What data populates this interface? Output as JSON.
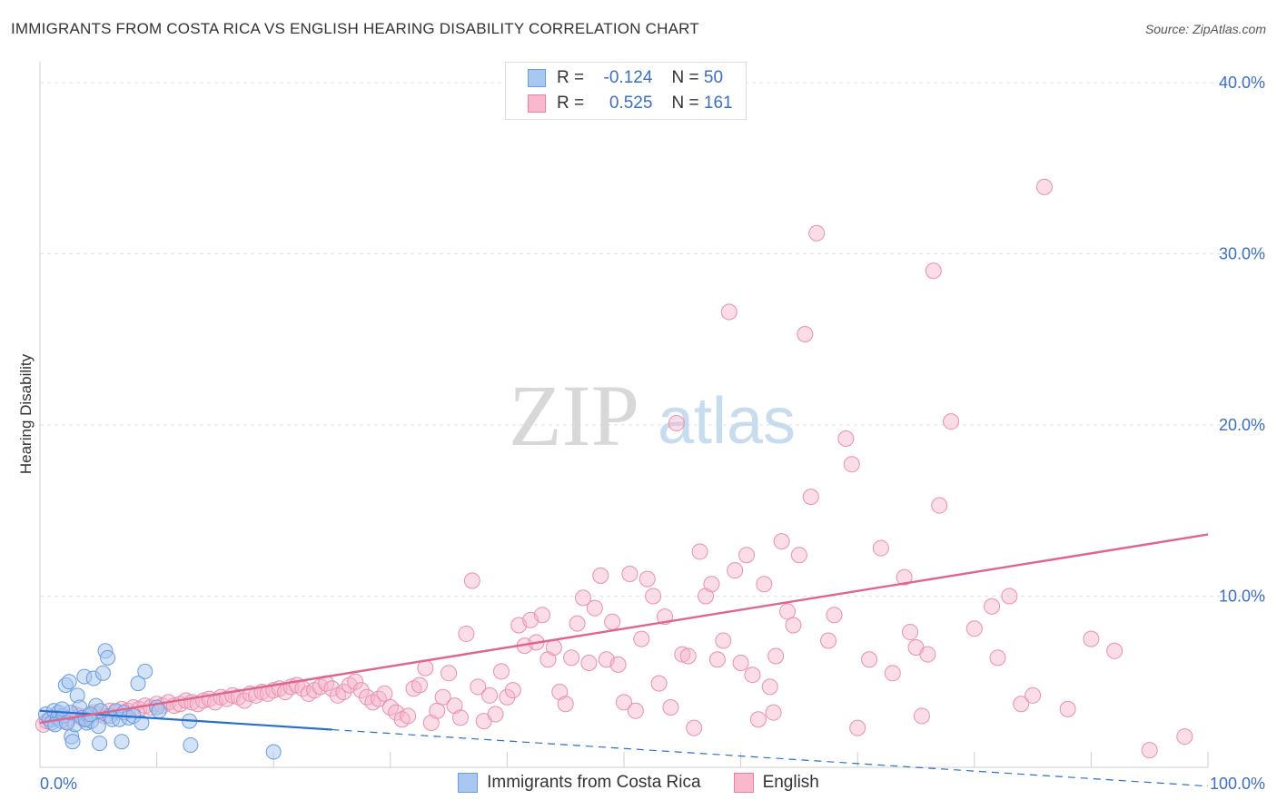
{
  "title": "IMMIGRANTS FROM COSTA RICA VS ENGLISH HEARING DISABILITY CORRELATION CHART",
  "source": "Source: ZipAtlas.com",
  "watermark": {
    "zip": "ZIP",
    "atlas": "atlas"
  },
  "legend_top": [
    {
      "r_label": "R =",
      "r_value": "-0.124",
      "n_label": "N =",
      "n_value": "50",
      "color": "#a8c8f0",
      "border": "#6b9be0"
    },
    {
      "r_label": "R =",
      "r_value": "0.525",
      "n_label": "N =",
      "n_value": "161",
      "color": "#f9b8cc",
      "border": "#ea80a0"
    }
  ],
  "colors": {
    "blue_fill": "#a8c8f0",
    "blue_stroke": "#6b9be0",
    "blue_line": "#2a6fd0",
    "pink_fill": "#f7b4c9",
    "pink_stroke": "#e890ad",
    "pink_line": "#e0648e",
    "tick_label": "#3a6fc4"
  },
  "chart_data": {
    "type": "scatter",
    "ylabel": "Hearing Disability",
    "xlim": [
      0,
      100
    ],
    "ylim": [
      0,
      41
    ],
    "x_tick_labels": [
      "0.0%",
      "100.0%"
    ],
    "y_ticks": [
      10,
      20,
      30,
      40
    ],
    "y_tick_labels": [
      "10.0%",
      "20.0%",
      "30.0%",
      "40.0%"
    ],
    "grid": true,
    "series": [
      {
        "name": "Immigrants from Costa Rica",
        "points": [
          [
            0.5,
            3.1
          ],
          [
            0.8,
            2.8
          ],
          [
            1.0,
            2.6
          ],
          [
            1.2,
            3.3
          ],
          [
            1.5,
            2.9
          ],
          [
            1.6,
            3.2
          ],
          [
            1.8,
            2.7
          ],
          [
            2.0,
            3.0
          ],
          [
            2.2,
            4.8
          ],
          [
            2.5,
            5.0
          ],
          [
            2.7,
            1.8
          ],
          [
            2.8,
            1.5
          ],
          [
            3.0,
            2.5
          ],
          [
            3.2,
            4.2
          ],
          [
            3.4,
            3.5
          ],
          [
            3.6,
            2.9
          ],
          [
            3.8,
            5.3
          ],
          [
            4.0,
            2.6
          ],
          [
            4.2,
            3.0
          ],
          [
            4.4,
            2.7
          ],
          [
            4.6,
            5.2
          ],
          [
            4.8,
            3.6
          ],
          [
            5.0,
            2.4
          ],
          [
            5.2,
            3.3
          ],
          [
            5.4,
            5.5
          ],
          [
            5.6,
            6.8
          ],
          [
            5.8,
            6.4
          ],
          [
            6.0,
            3.0
          ],
          [
            6.2,
            2.8
          ],
          [
            6.5,
            3.3
          ],
          [
            6.8,
            2.8
          ],
          [
            7.2,
            3.2
          ],
          [
            7.6,
            2.9
          ],
          [
            8.0,
            3.0
          ],
          [
            8.4,
            4.9
          ],
          [
            8.7,
            2.6
          ],
          [
            9.0,
            5.6
          ],
          [
            10.0,
            3.5
          ],
          [
            10.2,
            3.3
          ],
          [
            12.8,
            2.7
          ],
          [
            12.9,
            1.3
          ],
          [
            20.0,
            0.9
          ],
          [
            1.3,
            2.5
          ],
          [
            2.3,
            2.6
          ],
          [
            2.6,
            3.2
          ],
          [
            3.9,
            2.8
          ],
          [
            4.3,
            3.1
          ],
          [
            1.9,
            3.4
          ],
          [
            5.1,
            1.4
          ],
          [
            7.0,
            1.5
          ]
        ]
      },
      {
        "name": "English",
        "points": [
          [
            0.3,
            2.5
          ],
          [
            0.6,
            2.7
          ],
          [
            1.0,
            2.8
          ],
          [
            1.4,
            2.9
          ],
          [
            1.8,
            3.0
          ],
          [
            2.2,
            2.7
          ],
          [
            2.6,
            2.9
          ],
          [
            3.0,
            3.1
          ],
          [
            3.4,
            3.0
          ],
          [
            3.8,
            2.8
          ],
          [
            4.2,
            3.0
          ],
          [
            4.6,
            3.2
          ],
          [
            5.0,
            3.1
          ],
          [
            5.5,
            3.0
          ],
          [
            6.0,
            3.3
          ],
          [
            6.5,
            3.2
          ],
          [
            7.0,
            3.4
          ],
          [
            7.5,
            3.3
          ],
          [
            8.0,
            3.5
          ],
          [
            8.5,
            3.4
          ],
          [
            9.0,
            3.6
          ],
          [
            9.5,
            3.5
          ],
          [
            10.0,
            3.7
          ],
          [
            10.5,
            3.6
          ],
          [
            11.0,
            3.8
          ],
          [
            11.5,
            3.6
          ],
          [
            12.0,
            3.7
          ],
          [
            12.5,
            3.9
          ],
          [
            13.0,
            3.8
          ],
          [
            13.5,
            3.7
          ],
          [
            14.0,
            3.9
          ],
          [
            14.5,
            4.0
          ],
          [
            15.0,
            3.8
          ],
          [
            15.5,
            4.1
          ],
          [
            16.0,
            4.0
          ],
          [
            16.5,
            4.2
          ],
          [
            17.0,
            4.1
          ],
          [
            17.5,
            3.9
          ],
          [
            18.0,
            4.3
          ],
          [
            18.5,
            4.2
          ],
          [
            19.0,
            4.4
          ],
          [
            19.5,
            4.3
          ],
          [
            20.0,
            4.5
          ],
          [
            20.5,
            4.6
          ],
          [
            21.0,
            4.4
          ],
          [
            21.5,
            4.7
          ],
          [
            22.0,
            4.8
          ],
          [
            22.5,
            4.6
          ],
          [
            23.0,
            4.3
          ],
          [
            23.5,
            4.5
          ],
          [
            24.0,
            4.7
          ],
          [
            24.5,
            4.9
          ],
          [
            25.0,
            4.6
          ],
          [
            25.5,
            4.2
          ],
          [
            26.0,
            4.4
          ],
          [
            26.5,
            4.8
          ],
          [
            27.0,
            5.0
          ],
          [
            27.5,
            4.5
          ],
          [
            28.0,
            4.1
          ],
          [
            28.5,
            3.8
          ],
          [
            29.0,
            4.0
          ],
          [
            29.5,
            4.3
          ],
          [
            30.0,
            3.5
          ],
          [
            30.5,
            3.2
          ],
          [
            31.0,
            2.8
          ],
          [
            31.5,
            3.0
          ],
          [
            32.0,
            4.6
          ],
          [
            32.5,
            4.8
          ],
          [
            33.0,
            5.8
          ],
          [
            33.5,
            2.6
          ],
          [
            34.0,
            3.3
          ],
          [
            34.5,
            4.1
          ],
          [
            35.0,
            5.5
          ],
          [
            35.5,
            3.6
          ],
          [
            36.0,
            2.9
          ],
          [
            36.5,
            7.8
          ],
          [
            37.0,
            10.9
          ],
          [
            37.5,
            4.7
          ],
          [
            38.0,
            2.7
          ],
          [
            38.5,
            4.2
          ],
          [
            39.0,
            3.1
          ],
          [
            39.5,
            5.6
          ],
          [
            40.0,
            4.1
          ],
          [
            40.5,
            4.5
          ],
          [
            41.0,
            8.3
          ],
          [
            41.5,
            7.1
          ],
          [
            42.0,
            8.6
          ],
          [
            42.5,
            7.3
          ],
          [
            43.0,
            8.9
          ],
          [
            43.5,
            6.3
          ],
          [
            44.0,
            7.0
          ],
          [
            44.5,
            4.4
          ],
          [
            45.0,
            3.7
          ],
          [
            45.5,
            6.4
          ],
          [
            46.0,
            8.4
          ],
          [
            46.5,
            9.9
          ],
          [
            47.0,
            6.1
          ],
          [
            47.5,
            9.3
          ],
          [
            48.0,
            11.2
          ],
          [
            48.5,
            6.3
          ],
          [
            49.0,
            8.5
          ],
          [
            49.5,
            6.0
          ],
          [
            50.0,
            3.8
          ],
          [
            50.5,
            11.3
          ],
          [
            51.0,
            3.3
          ],
          [
            51.5,
            7.5
          ],
          [
            52.0,
            11.0
          ],
          [
            52.5,
            10.0
          ],
          [
            53.0,
            4.9
          ],
          [
            53.5,
            8.8
          ],
          [
            54.0,
            3.5
          ],
          [
            54.5,
            20.1
          ],
          [
            55.0,
            6.6
          ],
          [
            55.5,
            6.5
          ],
          [
            56.0,
            2.3
          ],
          [
            56.5,
            12.6
          ],
          [
            57.0,
            10.0
          ],
          [
            57.5,
            10.7
          ],
          [
            58.0,
            6.3
          ],
          [
            58.5,
            7.4
          ],
          [
            59.0,
            26.6
          ],
          [
            59.5,
            11.5
          ],
          [
            60.0,
            6.1
          ],
          [
            60.5,
            12.4
          ],
          [
            61.0,
            5.4
          ],
          [
            61.5,
            2.8
          ],
          [
            62.0,
            10.7
          ],
          [
            62.5,
            4.7
          ],
          [
            63.0,
            6.5
          ],
          [
            63.5,
            13.2
          ],
          [
            64.0,
            9.1
          ],
          [
            64.5,
            8.3
          ],
          [
            65.0,
            12.4
          ],
          [
            65.5,
            25.3
          ],
          [
            66.0,
            15.8
          ],
          [
            66.5,
            31.2
          ],
          [
            67.5,
            7.4
          ],
          [
            68.0,
            8.9
          ],
          [
            69.0,
            19.2
          ],
          [
            69.5,
            17.7
          ],
          [
            70.0,
            2.3
          ],
          [
            71.0,
            6.3
          ],
          [
            72.0,
            12.8
          ],
          [
            73.0,
            5.5
          ],
          [
            74.0,
            11.1
          ],
          [
            74.5,
            7.9
          ],
          [
            75.0,
            7.0
          ],
          [
            75.5,
            3.0
          ],
          [
            76.0,
            6.6
          ],
          [
            76.5,
            29.0
          ],
          [
            77.0,
            15.3
          ],
          [
            78.0,
            20.2
          ],
          [
            80.0,
            8.1
          ],
          [
            81.5,
            9.4
          ],
          [
            82.0,
            6.4
          ],
          [
            83.0,
            10.0
          ],
          [
            84.0,
            3.7
          ],
          [
            86.0,
            33.9
          ],
          [
            90.0,
            7.5
          ],
          [
            92.0,
            6.8
          ],
          [
            95.0,
            1.0
          ],
          [
            98.0,
            1.8
          ],
          [
            85.0,
            4.2
          ],
          [
            88.0,
            3.4
          ],
          [
            62.8,
            3.2
          ]
        ]
      }
    ],
    "trend_lines": [
      {
        "name": "Immigrants from Costa Rica",
        "x": [
          0,
          25
        ],
        "y": [
          3.3,
          2.2
        ],
        "dashed_extension_to_x": 100
      },
      {
        "name": "English",
        "x": [
          0,
          100
        ],
        "y": [
          2.6,
          13.6
        ]
      }
    ]
  },
  "bottom_legend": [
    {
      "label": "Immigrants from Costa Rica",
      "color": "#a8c8f0",
      "border": "#6b9be0"
    },
    {
      "label": "English",
      "color": "#f9b8cc",
      "border": "#ea80a0"
    }
  ]
}
